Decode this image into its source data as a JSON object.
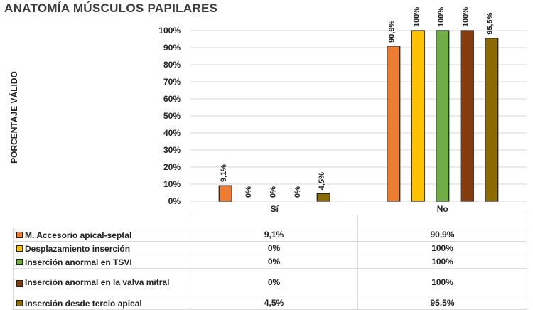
{
  "chart_data": {
    "type": "bar",
    "title": "ANATOMÍA MÚSCULOS PAPILARES",
    "ylabel": "PORCENTAJE VÁLIDO",
    "xlabel": "",
    "categories": [
      "Sí",
      "No"
    ],
    "ylim": [
      0,
      100
    ],
    "yticks": [
      "0%",
      "10%",
      "20%",
      "30%",
      "40%",
      "50%",
      "60%",
      "70%",
      "80%",
      "90%",
      "100%"
    ],
    "grid": true,
    "legend": "data-table-below",
    "series": [
      {
        "name": "M. Accesorio apical-septal",
        "color": "#ED7D31",
        "values": [
          9.1,
          90.9
        ],
        "labels": [
          "9,1%",
          "90,9%"
        ]
      },
      {
        "name": "Desplazamiento inserción",
        "color": "#FFC000",
        "values": [
          0,
          100
        ],
        "labels": [
          "0%",
          "100%"
        ]
      },
      {
        "name": "Inserción anormal en TSVI",
        "color": "#70AD47",
        "values": [
          0,
          100
        ],
        "labels": [
          "0%",
          "100%"
        ]
      },
      {
        "name": "Inserción anormal en la valva mitral",
        "color": "#843C0C",
        "values": [
          0,
          100
        ],
        "labels": [
          "0%",
          "100%"
        ]
      },
      {
        "name": "Inserción desde tercio apical",
        "color": "#8B6A00",
        "values": [
          4.5,
          95.5
        ],
        "labels": [
          "4,5%",
          "95,5%"
        ]
      }
    ]
  }
}
